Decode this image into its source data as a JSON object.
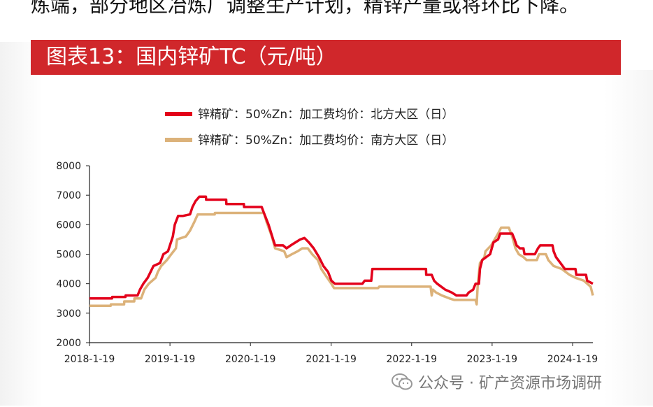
{
  "header": {
    "intro_text": "炼端，部分地区冶炼厂调整生产计划，精锌产量或将环比下降。",
    "chart_title": "图表13：国内锌矿TC（元/吨）"
  },
  "watermark": {
    "text": "公众号 · 矿产资源市场调研",
    "icon": "wechat-icon"
  },
  "colors": {
    "title_bar": "#d0272b",
    "series_north": "#e3001b",
    "series_south": "#dcb27a"
  },
  "chart_data": {
    "type": "line",
    "title": "",
    "xlabel": "",
    "ylabel": "",
    "ylim": [
      2000,
      8000
    ],
    "yticks": [
      2000,
      3000,
      4000,
      5000,
      6000,
      7000,
      8000
    ],
    "xticks": [
      "2018-1-19",
      "2019-1-19",
      "2020-1-19",
      "2021-1-19",
      "2022-1-19",
      "2023-1-19",
      "2024-1-19"
    ],
    "xlim": [
      "2018-01-19",
      "2024-04-20"
    ],
    "legend_position": "top",
    "grid": false,
    "series": [
      {
        "name": "锌精矿：50%Zn：加工费均价：北方大区（日）",
        "color": "#e3001b",
        "points": [
          [
            "2018-01-19",
            3500
          ],
          [
            "2018-05-01",
            3500
          ],
          [
            "2018-05-02",
            3550
          ],
          [
            "2018-07-01",
            3550
          ],
          [
            "2018-07-02",
            3600
          ],
          [
            "2018-08-25",
            3600
          ],
          [
            "2018-09-05",
            3800
          ],
          [
            "2018-09-20",
            4000
          ],
          [
            "2018-10-10",
            4200
          ],
          [
            "2018-11-05",
            4600
          ],
          [
            "2018-12-05",
            4700
          ],
          [
            "2018-12-20",
            5000
          ],
          [
            "2019-01-10",
            5100
          ],
          [
            "2019-02-01",
            5600
          ],
          [
            "2019-02-10",
            6000
          ],
          [
            "2019-02-25",
            6300
          ],
          [
            "2019-03-20",
            6300
          ],
          [
            "2019-04-20",
            6350
          ],
          [
            "2019-05-01",
            6600
          ],
          [
            "2019-05-15",
            6800
          ],
          [
            "2019-06-01",
            6950
          ],
          [
            "2019-07-01",
            6950
          ],
          [
            "2019-07-02",
            6850
          ],
          [
            "2019-10-01",
            6850
          ],
          [
            "2019-10-02",
            6700
          ],
          [
            "2019-12-20",
            6700
          ],
          [
            "2019-12-21",
            6600
          ],
          [
            "2020-03-10",
            6600
          ],
          [
            "2020-03-20",
            6400
          ],
          [
            "2020-04-10",
            6000
          ],
          [
            "2020-05-01",
            5500
          ],
          [
            "2020-05-10",
            5300
          ],
          [
            "2020-06-15",
            5300
          ],
          [
            "2020-07-01",
            5200
          ],
          [
            "2020-07-20",
            5300
          ],
          [
            "2020-08-10",
            5400
          ],
          [
            "2020-09-01",
            5500
          ],
          [
            "2020-09-20",
            5550
          ],
          [
            "2020-10-10",
            5400
          ],
          [
            "2020-11-01",
            5200
          ],
          [
            "2020-11-25",
            4900
          ],
          [
            "2020-12-15",
            4600
          ],
          [
            "2021-01-05",
            4400
          ],
          [
            "2021-01-20",
            4100
          ],
          [
            "2021-02-05",
            4000
          ],
          [
            "2021-06-10",
            4000
          ],
          [
            "2021-06-20",
            4100
          ],
          [
            "2021-07-20",
            4100
          ],
          [
            "2021-07-25",
            4500
          ],
          [
            "2022-03-25",
            4500
          ],
          [
            "2022-03-26",
            4300
          ],
          [
            "2022-04-20",
            4300
          ],
          [
            "2022-05-01",
            4100
          ],
          [
            "2022-05-15",
            4000
          ],
          [
            "2022-06-20",
            3800
          ],
          [
            "2022-07-20",
            3700
          ],
          [
            "2022-08-10",
            3600
          ],
          [
            "2022-09-25",
            3600
          ],
          [
            "2022-10-05",
            3700
          ],
          [
            "2022-10-25",
            3800
          ],
          [
            "2022-11-05",
            4000
          ],
          [
            "2022-11-20",
            4000
          ],
          [
            "2022-11-25",
            4500
          ],
          [
            "2022-12-05",
            4800
          ],
          [
            "2023-01-10",
            5000
          ],
          [
            "2023-01-25",
            5400
          ],
          [
            "2023-02-15",
            5500
          ],
          [
            "2023-02-25",
            5700
          ],
          [
            "2023-04-20",
            5700
          ],
          [
            "2023-05-01",
            5500
          ],
          [
            "2023-05-10",
            5300
          ],
          [
            "2023-05-25",
            5200
          ],
          [
            "2023-06-10",
            5200
          ],
          [
            "2023-06-15",
            5000
          ],
          [
            "2023-08-01",
            5000
          ],
          [
            "2023-08-15",
            5200
          ],
          [
            "2023-08-25",
            5300
          ],
          [
            "2023-10-20",
            5300
          ],
          [
            "2023-10-25",
            5100
          ],
          [
            "2023-11-05",
            4900
          ],
          [
            "2023-11-25",
            4700
          ],
          [
            "2023-12-15",
            4500
          ],
          [
            "2024-02-01",
            4500
          ],
          [
            "2024-02-05",
            4300
          ],
          [
            "2024-03-20",
            4300
          ],
          [
            "2024-03-25",
            4100
          ],
          [
            "2024-04-20",
            4000
          ]
        ]
      },
      {
        "name": "锌精矿：50%Zn：加工费均价：南方大区（日）",
        "color": "#dcb27a",
        "points": [
          [
            "2018-01-19",
            3250
          ],
          [
            "2018-04-25",
            3250
          ],
          [
            "2018-04-26",
            3300
          ],
          [
            "2018-06-25",
            3300
          ],
          [
            "2018-06-26",
            3400
          ],
          [
            "2018-08-10",
            3400
          ],
          [
            "2018-08-11",
            3500
          ],
          [
            "2018-09-10",
            3500
          ],
          [
            "2018-09-25",
            3800
          ],
          [
            "2018-10-15",
            4000
          ],
          [
            "2018-11-15",
            4200
          ],
          [
            "2018-11-25",
            4400
          ],
          [
            "2018-12-10",
            4600
          ],
          [
            "2019-01-05",
            4800
          ],
          [
            "2019-01-25",
            5000
          ],
          [
            "2019-02-15",
            5200
          ],
          [
            "2019-02-20",
            5500
          ],
          [
            "2019-04-01",
            5600
          ],
          [
            "2019-04-20",
            5800
          ],
          [
            "2019-05-10",
            6100
          ],
          [
            "2019-05-25",
            6350
          ],
          [
            "2019-08-10",
            6350
          ],
          [
            "2019-08-11",
            6400
          ],
          [
            "2020-03-20",
            6400
          ],
          [
            "2020-04-01",
            6100
          ],
          [
            "2020-04-25",
            5600
          ],
          [
            "2020-05-10",
            5200
          ],
          [
            "2020-06-20",
            5100
          ],
          [
            "2020-07-01",
            4900
          ],
          [
            "2020-07-25",
            5000
          ],
          [
            "2020-08-20",
            5100
          ],
          [
            "2020-09-10",
            5200
          ],
          [
            "2020-10-05",
            5200
          ],
          [
            "2020-10-25",
            5000
          ],
          [
            "2020-11-20",
            4800
          ],
          [
            "2020-12-05",
            4500
          ],
          [
            "2021-01-01",
            4200
          ],
          [
            "2021-01-20",
            4000
          ],
          [
            "2021-02-01",
            3850
          ],
          [
            "2021-08-20",
            3850
          ],
          [
            "2021-08-25",
            3900
          ],
          [
            "2022-04-15",
            3900
          ],
          [
            "2022-04-20",
            3600
          ],
          [
            "2022-04-25",
            3800
          ],
          [
            "2022-05-10",
            3700
          ],
          [
            "2022-06-05",
            3600
          ],
          [
            "2022-07-10",
            3500
          ],
          [
            "2022-08-01",
            3450
          ],
          [
            "2022-11-05",
            3450
          ],
          [
            "2022-11-10",
            3300
          ],
          [
            "2022-11-15",
            4000
          ],
          [
            "2022-11-25",
            4700
          ],
          [
            "2022-12-15",
            4900
          ],
          [
            "2022-12-20",
            5100
          ],
          [
            "2023-01-15",
            5300
          ],
          [
            "2023-02-15",
            5700
          ],
          [
            "2023-03-01",
            5900
          ],
          [
            "2023-04-05",
            5900
          ],
          [
            "2023-04-20",
            5600
          ],
          [
            "2023-05-05",
            5200
          ],
          [
            "2023-05-20",
            5000
          ],
          [
            "2023-06-10",
            4900
          ],
          [
            "2023-06-25",
            4800
          ],
          [
            "2023-08-10",
            4800
          ],
          [
            "2023-08-20",
            5000
          ],
          [
            "2023-09-20",
            5000
          ],
          [
            "2023-10-01",
            4800
          ],
          [
            "2023-10-25",
            4600
          ],
          [
            "2023-12-01",
            4500
          ],
          [
            "2024-01-05",
            4300
          ],
          [
            "2024-02-01",
            4200
          ],
          [
            "2024-03-10",
            4100
          ],
          [
            "2024-04-10",
            3900
          ],
          [
            "2024-04-20",
            3600
          ]
        ]
      }
    ]
  }
}
